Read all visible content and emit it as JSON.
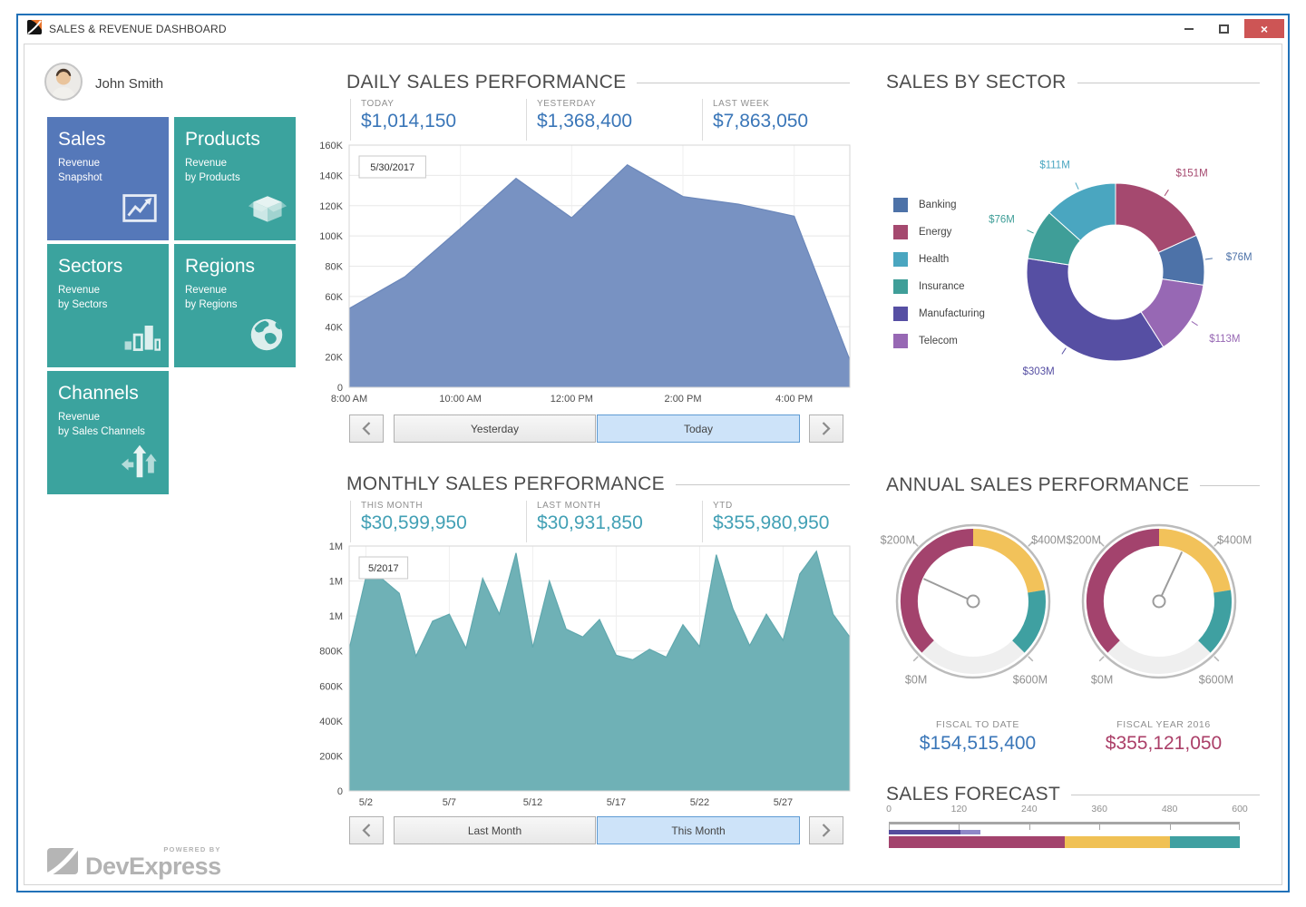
{
  "window": {
    "title": "SALES & REVENUE DASHBOARD",
    "close_glyph": "×"
  },
  "user": {
    "name": "John Smith"
  },
  "tiles": [
    {
      "title": "Sales",
      "subtitle": "Revenue\nSnapshot",
      "icon": "line-chart-icon",
      "color": "#5578b9"
    },
    {
      "title": "Products",
      "subtitle": "Revenue\nby Products",
      "icon": "box-icon",
      "color": "#3ba39e"
    },
    {
      "title": "Sectors",
      "subtitle": "Revenue\nby Sectors",
      "icon": "bar-chart-icon",
      "color": "#3ba39e"
    },
    {
      "title": "Regions",
      "subtitle": "Revenue\nby Regions",
      "icon": "globe-icon",
      "color": "#3ba39e"
    },
    {
      "title": "Channels",
      "subtitle": "Revenue\nby Sales Channels",
      "icon": "branch-arrows-icon",
      "color": "#3ba39e"
    }
  ],
  "daily": {
    "title": "DAILY SALES PERFORMANCE",
    "stats": [
      {
        "label": "TODAY",
        "value": "$1,014,150"
      },
      {
        "label": "YESTERDAY",
        "value": "$1,368,400"
      },
      {
        "label": "LAST WEEK",
        "value": "$7,863,050"
      }
    ],
    "nav": {
      "left": "Yesterday",
      "right": "Today"
    }
  },
  "monthly": {
    "title": "MONTHLY SALES PERFORMANCE",
    "stats": [
      {
        "label": "THIS MONTH",
        "value": "$30,599,950"
      },
      {
        "label": "LAST MONTH",
        "value": "$30,931,850"
      },
      {
        "label": "YTD",
        "value": "$355,980,950"
      }
    ],
    "nav": {
      "left": "Last Month",
      "right": "This Month"
    }
  },
  "sector": {
    "title": "SALES BY SECTOR",
    "legend": [
      {
        "label": "Banking",
        "color": "#4d72a8"
      },
      {
        "label": "Energy",
        "color": "#a5496f"
      },
      {
        "label": "Health",
        "color": "#4aa6c0"
      },
      {
        "label": "Insurance",
        "color": "#3f9e98"
      },
      {
        "label": "Manufacturing",
        "color": "#564fa3"
      },
      {
        "label": "Telecom",
        "color": "#9768b4"
      }
    ]
  },
  "annual": {
    "title": "ANNUAL SALES PERFORMANCE",
    "gauges": [
      {
        "caption": "FISCAL TO DATE",
        "value_text": "$154,515,400"
      },
      {
        "caption": "FISCAL YEAR 2016",
        "value_text": "$355,121,050"
      }
    ]
  },
  "forecast": {
    "title": "SALES FORECAST"
  },
  "brand": {
    "powered_by": "POWERED BY",
    "name": "DevExpress"
  },
  "chart_data": [
    {
      "id": "daily-sales",
      "type": "area",
      "title": "Daily Sales Performance",
      "color": "#7892c2",
      "edge": "#6b87ba",
      "x": [
        8,
        9,
        10,
        11,
        12,
        13,
        14,
        15,
        16,
        17
      ],
      "x_min": 8,
      "x_max": 17,
      "values": [
        52000,
        73000,
        105000,
        138000,
        112000,
        147000,
        126000,
        121000,
        113000,
        18000
      ],
      "y_max": 160000,
      "y_tick_labels": [
        "0",
        "20K",
        "40K",
        "60K",
        "80K",
        "100K",
        "120K",
        "140K",
        "160K"
      ],
      "x_ticks": [
        {
          "v": 8,
          "label": "8:00 AM"
        },
        {
          "v": 10,
          "label": "10:00 AM"
        },
        {
          "v": 12,
          "label": "12:00 PM"
        },
        {
          "v": 14,
          "label": "2:00 PM"
        },
        {
          "v": 16,
          "label": "4:00 PM"
        }
      ],
      "annotation": "5/30/2017",
      "grid": true,
      "legend": "none"
    },
    {
      "id": "monthly-sales",
      "type": "area",
      "title": "Monthly Sales Performance",
      "color": "#6fb1b6",
      "edge": "#60a8ae",
      "x": [
        1,
        2,
        3,
        4,
        5,
        6,
        7,
        8,
        9,
        10,
        11,
        12,
        13,
        14,
        15,
        16,
        17,
        18,
        19,
        20,
        21,
        22,
        23,
        24,
        25,
        26,
        27,
        28,
        29,
        30,
        31
      ],
      "x_min": 1,
      "x_max": 31,
      "values": [
        810000,
        1220000,
        1210000,
        1130000,
        770000,
        970000,
        1010000,
        815000,
        1215000,
        1010000,
        1360000,
        820000,
        1200000,
        925000,
        880000,
        980000,
        775000,
        750000,
        810000,
        765000,
        950000,
        825000,
        1350000,
        1040000,
        830000,
        1010000,
        860000,
        1240000,
        1370000,
        1010000,
        880000
      ],
      "y_max": 1400000,
      "y_tick_labels": [
        "0",
        "200K",
        "400K",
        "600K",
        "800K",
        "1M",
        "1M",
        "1M"
      ],
      "x_ticks": [
        {
          "v": 2,
          "label": "5/2"
        },
        {
          "v": 7,
          "label": "5/7"
        },
        {
          "v": 12,
          "label": "5/12"
        },
        {
          "v": 17,
          "label": "5/17"
        },
        {
          "v": 22,
          "label": "5/22"
        },
        {
          "v": 27,
          "label": "5/27"
        }
      ],
      "annotation": "5/2017",
      "grid": true,
      "legend": "none"
    },
    {
      "id": "sales-by-sector",
      "type": "donut",
      "title": "Sales by Sector",
      "unit": "$M",
      "slices": [
        {
          "name": "Energy",
          "value": 151,
          "label": "$151M",
          "color": "#a5496f"
        },
        {
          "name": "Banking",
          "value": 76,
          "label": "$76M",
          "color": "#4d72a8"
        },
        {
          "name": "Telecom",
          "value": 113,
          "label": "$113M",
          "color": "#9768b4"
        },
        {
          "name": "Manufacturing",
          "value": 303,
          "label": "$303M",
          "color": "#564fa3"
        },
        {
          "name": "Insurance",
          "value": 76,
          "label": "$76M",
          "color": "#3f9e98"
        },
        {
          "name": "Health",
          "value": 111,
          "label": "$111M",
          "color": "#4aa6c0"
        }
      ]
    },
    {
      "id": "gauge-fiscal-to-date",
      "type": "gauge",
      "title": "Fiscal to Date",
      "min": 0,
      "max": 600,
      "value": 154.5,
      "ranges": [
        {
          "to": 300,
          "color": "#a3436d"
        },
        {
          "to": 480,
          "color": "#f2c25a"
        },
        {
          "to": 600,
          "color": "#3fa0a1"
        }
      ],
      "ticks": [
        {
          "v": 0,
          "label": "$0M"
        },
        {
          "v": 200,
          "label": "$200M"
        },
        {
          "v": 400,
          "label": "$400M"
        },
        {
          "v": 600,
          "label": "$600M"
        }
      ]
    },
    {
      "id": "gauge-fiscal-2016",
      "type": "gauge",
      "title": "Fiscal Year 2016",
      "min": 0,
      "max": 600,
      "value": 355.1,
      "ranges": [
        {
          "to": 300,
          "color": "#a3436d"
        },
        {
          "to": 480,
          "color": "#f2c25a"
        },
        {
          "to": 600,
          "color": "#3fa0a1"
        }
      ],
      "ticks": [
        {
          "v": 0,
          "label": "$0M"
        },
        {
          "v": 200,
          "label": "$200M"
        },
        {
          "v": 400,
          "label": "$400M"
        },
        {
          "v": 600,
          "label": "$600M"
        }
      ]
    },
    {
      "id": "sales-forecast",
      "type": "linear",
      "title": "Sales Forecast",
      "min": 0,
      "max": 600,
      "tick_labels": [
        "0",
        "120",
        "240",
        "360",
        "480",
        "600"
      ],
      "value_segments": [
        {
          "to": 122,
          "color": "#544d9d"
        },
        {
          "to": 157,
          "color": "#8e88c8"
        }
      ],
      "ranges": [
        {
          "to": 300,
          "color": "#a3436d"
        },
        {
          "to": 480,
          "color": "#f0c155"
        },
        {
          "to": 600,
          "color": "#3fa0a1"
        }
      ]
    }
  ]
}
